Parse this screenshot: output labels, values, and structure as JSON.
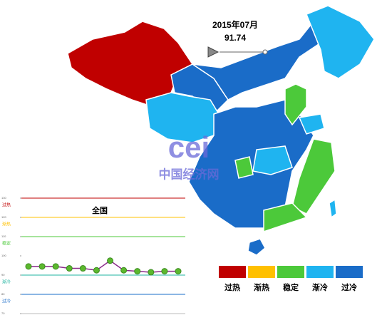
{
  "timeline": {
    "date": "2015年07月",
    "value": 91.74
  },
  "logo": {
    "mark": "cei",
    "name": "中国经济网"
  },
  "legend": [
    {
      "label": "过热",
      "color": "#c00000"
    },
    {
      "label": "渐热",
      "color": "#ffc000"
    },
    {
      "label": "稳定",
      "color": "#4cc93a"
    },
    {
      "label": "渐冷",
      "color": "#1fb4f0"
    },
    {
      "label": "过冷",
      "color": "#1a6cc8"
    }
  ],
  "chart_data": {
    "type": "line",
    "title": "全国",
    "values": [
      94.5,
      94.5,
      94.5,
      93.5,
      93.5,
      92.5,
      97.5,
      92.5,
      92,
      91.5,
      92,
      92
    ],
    "color": "#8b2a8b",
    "marker_color": "#5cb82e",
    "ylim": [
      70,
      130
    ],
    "yticks": [
      70,
      80,
      90,
      100,
      110,
      120,
      130
    ],
    "bands": [
      {
        "label": "过热",
        "line": 130,
        "color": "#c00000"
      },
      {
        "label": "渐热",
        "line": 120,
        "color": "#ffc000"
      },
      {
        "label": "稳定",
        "line": 110,
        "color": "#4cc93a"
      },
      {
        "label": "渐冷",
        "line": 90,
        "color": "#1fb4a0"
      },
      {
        "label": "过冷",
        "line": 80,
        "color": "#1a6cc8"
      }
    ]
  }
}
